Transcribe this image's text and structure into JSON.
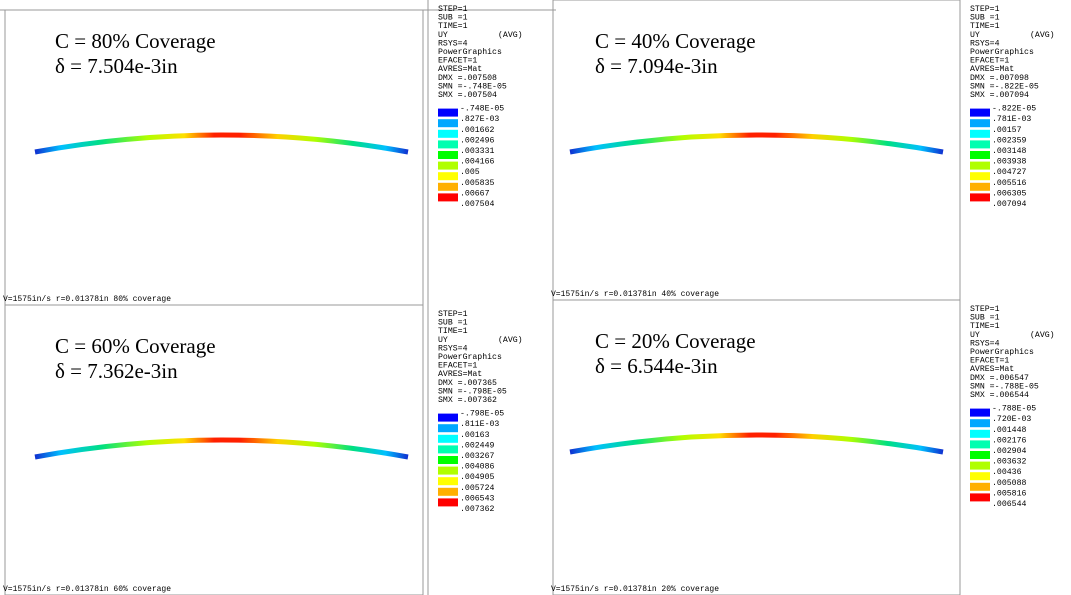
{
  "panels": [
    {
      "title": "C = 80% Coverage",
      "deflection": "δ = 7.504e-3in",
      "footer": "V=1575in/s r=0.01378in  80% coverage",
      "legend": {
        "header": [
          "STEP=1",
          "SUB =1",
          "TIME=1"
        ],
        "quantity": "UY",
        "average": "(AVG)",
        "settings": [
          "RSYS=4",
          "PowerGraphics",
          "EFACET=1",
          "AVRES=Mat",
          "DMX =.007508",
          "SMN =-.748E-05",
          "SMX =.007504"
        ],
        "levels": [
          "-.748E-05",
          ".827E-03",
          ".001662",
          ".002496",
          ".003331",
          ".004166",
          ".005",
          ".005835",
          ".00667",
          ".007504"
        ]
      }
    },
    {
      "title": "C = 40% Coverage",
      "deflection": "δ = 7.094e-3in",
      "footer": "V=1575in/s r=0.01378in  40% coverage",
      "legend": {
        "header": [
          "STEP=1",
          "SUB =1",
          "TIME=1"
        ],
        "quantity": "UY",
        "average": "(AVG)",
        "settings": [
          "RSYS=4",
          "PowerGraphics",
          "EFACET=1",
          "AVRES=Mat",
          "DMX =.007098",
          "SMN =-.822E-05",
          "SMX =.007094"
        ],
        "levels": [
          "-.822E-05",
          ".781E-03",
          ".00157",
          ".002359",
          ".003148",
          ".003938",
          ".004727",
          ".005516",
          ".006305",
          ".007094"
        ]
      }
    },
    {
      "title": "C = 60% Coverage",
      "deflection": "δ = 7.362e-3in",
      "footer": "V=1575in/s r=0.01378in  60% coverage",
      "legend": {
        "header": [
          "STEP=1",
          "SUB =1",
          "TIME=1"
        ],
        "quantity": "UY",
        "average": "(AVG)",
        "settings": [
          "RSYS=4",
          "PowerGraphics",
          "EFACET=1",
          "AVRES=Mat",
          "DMX =.007365",
          "SMN =-.798E-05",
          "SMX =.007362"
        ],
        "levels": [
          "-.798E-05",
          ".811E-03",
          ".00163",
          ".002449",
          ".003267",
          ".004086",
          ".004905",
          ".005724",
          ".006543",
          ".007362"
        ]
      }
    },
    {
      "title": "C = 20% Coverage",
      "deflection": "δ = 6.544e-3in",
      "footer": "V=1575in/s r=0.01378in  20% coverage",
      "legend": {
        "header": [
          "STEP=1",
          "SUB =1",
          "TIME=1"
        ],
        "quantity": "UY",
        "average": "(AVG)",
        "settings": [
          "RSYS=4",
          "PowerGraphics",
          "EFACET=1",
          "AVRES=Mat",
          "DMX =.006547",
          "SMN =-.788E-05",
          "SMX =.006544"
        ],
        "levels": [
          "-.788E-05",
          ".720E-03",
          ".001448",
          ".002176",
          ".002904",
          ".003632",
          ".00436",
          ".005088",
          ".005816",
          ".006544"
        ]
      }
    }
  ]
}
